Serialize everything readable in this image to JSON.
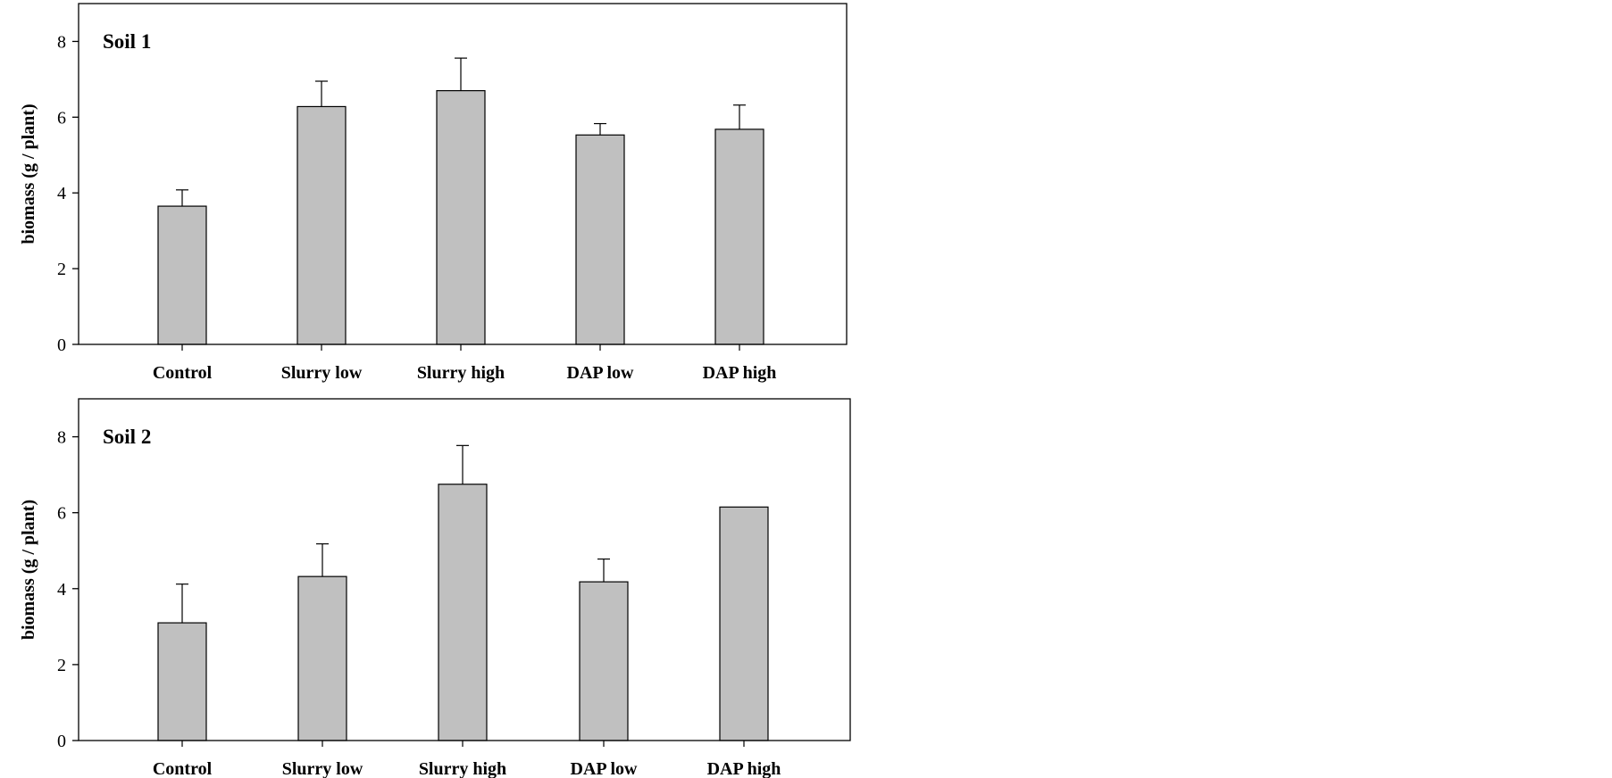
{
  "chart_data": [
    {
      "type": "bar",
      "title": "Soil 1",
      "xlabel": "",
      "ylabel": "biomass (g / plant)",
      "ylim": [
        0,
        9
      ],
      "yticks": [
        0,
        2,
        4,
        6,
        8
      ],
      "categories": [
        "Control",
        "Slurry low",
        "Slurry high",
        "DAP low",
        "DAP high"
      ],
      "values": [
        3.65,
        6.28,
        6.7,
        5.53,
        5.68
      ],
      "error_upper": [
        0.43,
        0.67,
        0.86,
        0.3,
        0.64
      ],
      "bar_color": "#c0c0c0",
      "grid": false,
      "legend": "none"
    },
    {
      "type": "bar",
      "title": "Soil 2",
      "xlabel": "",
      "ylabel": "biomass (g / plant)",
      "ylim": [
        0,
        9
      ],
      "yticks": [
        0,
        2,
        4,
        6,
        8
      ],
      "categories": [
        "Control",
        "Slurry low",
        "Slurry high",
        "DAP low",
        "DAP high"
      ],
      "values": [
        3.1,
        4.32,
        6.75,
        4.18,
        6.15
      ],
      "error_upper": [
        1.02,
        0.86,
        1.02,
        0.6,
        0.0
      ],
      "bar_color": "#c0c0c0",
      "grid": false,
      "legend": "none"
    }
  ]
}
